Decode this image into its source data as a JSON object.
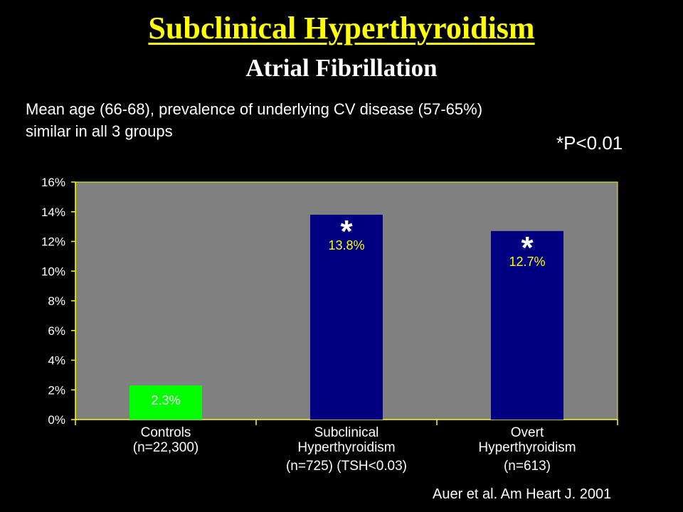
{
  "slide": {
    "title": "Subclinical Hyperthyroidism",
    "subtitle": "Atrial Fibrillation",
    "note_line1": "Mean age (66-68), prevalence of underlying CV disease (57-65%)",
    "note_line2": "similar in all 3 groups",
    "significance": "*P<0.01",
    "citation": "Auer et al. Am Heart J. 2001"
  },
  "chart_data": {
    "type": "bar",
    "title": "",
    "xlabel": "",
    "ylabel": "",
    "ylim": [
      0,
      16
    ],
    "yticks": [
      "0%",
      "2%",
      "4%",
      "6%",
      "8%",
      "10%",
      "12%",
      "14%",
      "16%"
    ],
    "grid": false,
    "categories": [
      [
        "Controls",
        "(n=22,300)"
      ],
      [
        "Subclinical",
        "Hyperthyroidism",
        "(n=725) (TSH<0.03)"
      ],
      [
        "Overt",
        "Hyperthyroidism",
        "(n=613)"
      ]
    ],
    "values": [
      2.3,
      13.8,
      12.7
    ],
    "labels": [
      "2.3%",
      "13.8%",
      "12.7%"
    ],
    "significance_markers": [
      "",
      "*",
      "*"
    ],
    "bar_colors": [
      "#00ff00",
      "#000080",
      "#000080"
    ],
    "label_colors": [
      "#ffffff",
      "#ffff00",
      "#ffff00"
    ],
    "plot_background": "#808080"
  }
}
